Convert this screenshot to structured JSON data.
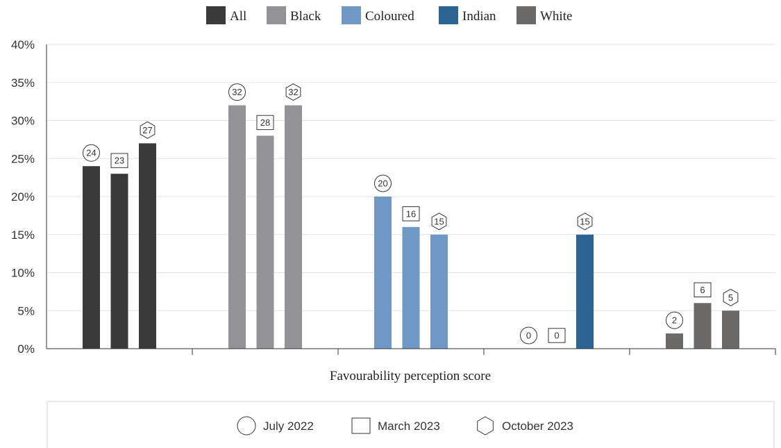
{
  "chart_data": {
    "type": "bar",
    "xlabel": "Favourability perception score",
    "ylabel": "",
    "ylim": [
      0,
      40
    ],
    "y_ticks": [
      "0%",
      "5%",
      "10%",
      "15%",
      "20%",
      "25%",
      "30%",
      "35%",
      "40%"
    ],
    "grid": true,
    "legend_position": "top",
    "period_legend_position": "bottom",
    "groups": [
      {
        "name": "All",
        "color": "#3a3a3a"
      },
      {
        "name": "Black",
        "color": "#939296"
      },
      {
        "name": "Coloured",
        "color": "#6f98c4"
      },
      {
        "name": "Indian",
        "color": "#2c6594"
      },
      {
        "name": "White",
        "color": "#6b6a69"
      }
    ],
    "series": [
      {
        "name": "July 2022",
        "marker": "circle",
        "values": [
          24,
          32,
          20,
          0,
          2
        ]
      },
      {
        "name": "March 2023",
        "marker": "square",
        "values": [
          23,
          28,
          16,
          0,
          6
        ]
      },
      {
        "name": "October 2023",
        "marker": "hexagon",
        "values": [
          27,
          32,
          15,
          15,
          5
        ]
      }
    ]
  }
}
